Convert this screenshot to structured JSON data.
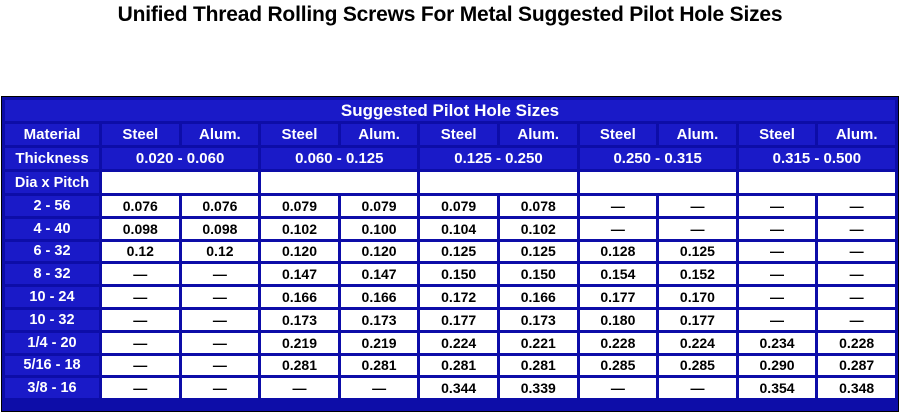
{
  "title": "Unified Thread Rolling Screws For Metal Suggested Pilot Hole Sizes",
  "table": {
    "banner": "Suggested Pilot Hole Sizes",
    "material_label": "Material",
    "materials": [
      "Steel",
      "Alum.",
      "Steel",
      "Alum.",
      "Steel",
      "Alum.",
      "Steel",
      "Alum.",
      "Steel",
      "Alum."
    ],
    "thickness_label": "Thickness",
    "thickness_ranges": [
      "0.020 - 0.060",
      "0.060 - 0.125",
      "0.125 - 0.250",
      "0.250 - 0.315",
      "0.315 - 0.500"
    ],
    "dia_label": "Dia x Pitch",
    "rows": [
      {
        "size": "2 - 56",
        "values": [
          "0.076",
          "0.076",
          "0.079",
          "0.079",
          "0.079",
          "0.078",
          "—",
          "—",
          "—",
          "—"
        ]
      },
      {
        "size": "4 - 40",
        "values": [
          "0.098",
          "0.098",
          "0.102",
          "0.100",
          "0.104",
          "0.102",
          "—",
          "—",
          "—",
          "—"
        ]
      },
      {
        "size": "6 - 32",
        "values": [
          "0.12",
          "0.12",
          "0.120",
          "0.120",
          "0.125",
          "0.125",
          "0.128",
          "0.125",
          "—",
          "—"
        ]
      },
      {
        "size": "8 - 32",
        "values": [
          "—",
          "—",
          "0.147",
          "0.147",
          "0.150",
          "0.150",
          "0.154",
          "0.152",
          "—",
          "—"
        ]
      },
      {
        "size": "10 - 24",
        "values": [
          "—",
          "—",
          "0.166",
          "0.166",
          "0.172",
          "0.166",
          "0.177",
          "0.170",
          "—",
          "—"
        ]
      },
      {
        "size": "10 - 32",
        "values": [
          "—",
          "—",
          "0.173",
          "0.173",
          "0.177",
          "0.173",
          "0.180",
          "0.177",
          "—",
          "—"
        ]
      },
      {
        "size": "1/4 - 20",
        "values": [
          "—",
          "—",
          "0.219",
          "0.219",
          "0.224",
          "0.221",
          "0.228",
          "0.224",
          "0.234",
          "0.228"
        ]
      },
      {
        "size": "5/16 - 18",
        "values": [
          "—",
          "—",
          "0.281",
          "0.281",
          "0.281",
          "0.281",
          "0.285",
          "0.285",
          "0.290",
          "0.287"
        ]
      },
      {
        "size": "3/8 - 16",
        "values": [
          "—",
          "—",
          "—",
          "—",
          "0.344",
          "0.339",
          "—",
          "—",
          "0.354",
          "0.348"
        ]
      }
    ]
  }
}
